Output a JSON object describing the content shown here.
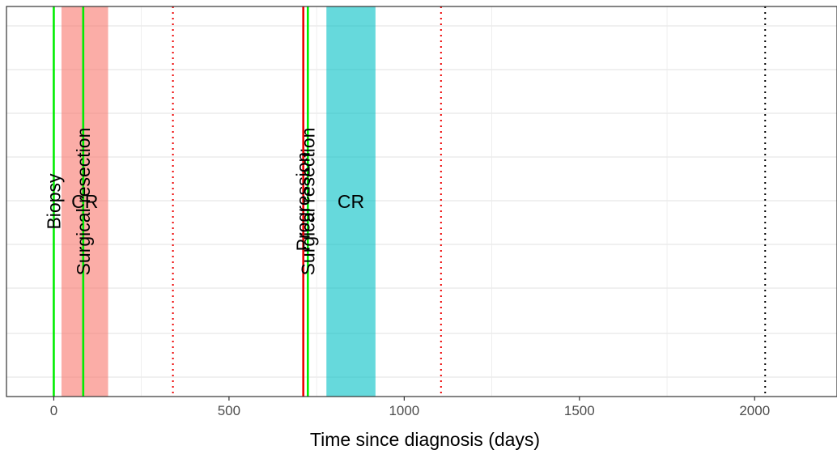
{
  "chart_data": {
    "type": "timeline",
    "xlabel": "Time since diagnosis (days)",
    "xlim": [
      -135,
      2235
    ],
    "xticks": [
      0,
      500,
      1000,
      1500,
      2000
    ],
    "xtick_labels": [
      "0",
      "500",
      "1000",
      "1500",
      "2000"
    ],
    "grid": true,
    "response_bands": [
      {
        "label": "CR",
        "start": 22,
        "end": 155,
        "color": "#F8766D",
        "opacity": 0.6
      },
      {
        "label": "CR",
        "start": 778,
        "end": 918,
        "color": "#00BFC4",
        "opacity": 0.6
      }
    ],
    "events": [
      {
        "label": "Biopsy",
        "day": 0,
        "color": "#00EE00"
      },
      {
        "label": "Surgical resection",
        "day": 84,
        "color": "#00EE00"
      },
      {
        "label": "Progression",
        "day": 712,
        "color": "#EE0000"
      },
      {
        "label": "Surgical resection",
        "day": 725,
        "color": "#00EE00"
      }
    ],
    "dotted_markers": [
      {
        "day": 340,
        "color": "#EE0000"
      },
      {
        "day": 1105,
        "color": "#EE0000"
      },
      {
        "day": 2030,
        "color": "#000000"
      }
    ]
  }
}
